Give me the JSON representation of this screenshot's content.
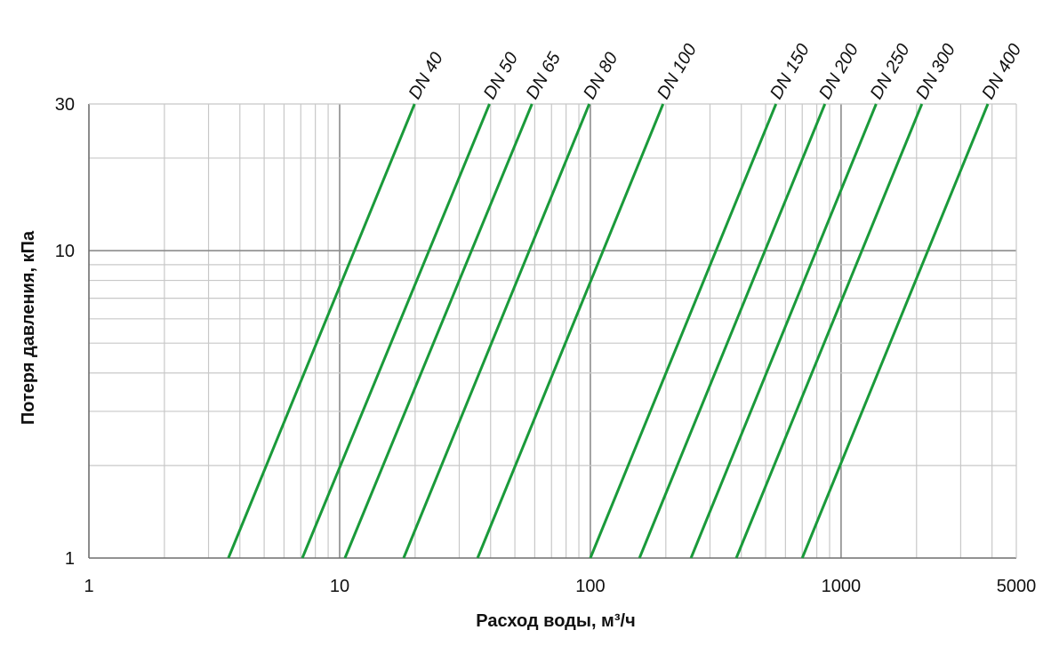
{
  "chart_data": {
    "type": "line",
    "title": "",
    "xlabel": "Расход воды, м³/ч",
    "ylabel": "Потеря давления, кПа",
    "x_scale": "log",
    "y_scale": "log",
    "xlim": [
      1,
      5000
    ],
    "ylim": [
      1,
      30
    ],
    "x_ticks": [
      1,
      10,
      100,
      1000,
      5000
    ],
    "x_tick_labels": [
      "1",
      "10",
      "100",
      "1000",
      "5000"
    ],
    "y_ticks": [
      1,
      10,
      30
    ],
    "y_tick_labels": [
      "1",
      "10",
      "30"
    ],
    "grid": true,
    "legend": "labels at top of each line",
    "colors": {
      "line": "#1a9a3a",
      "grid_minor": "#c8c8c8",
      "grid_major": "#8c8c8c",
      "axis": "#6e6e6e"
    },
    "series": [
      {
        "name": "DN 40",
        "x": [
          3.6,
          19.9
        ],
        "y": [
          1,
          30
        ]
      },
      {
        "name": "DN 50",
        "x": [
          7.1,
          39.6
        ],
        "y": [
          1,
          30
        ]
      },
      {
        "name": "DN 65",
        "x": [
          10.5,
          58.5
        ],
        "y": [
          1,
          30
        ]
      },
      {
        "name": "DN 80",
        "x": [
          18,
          99
        ],
        "y": [
          1,
          30
        ]
      },
      {
        "name": "DN 100",
        "x": [
          35.5,
          195
        ],
        "y": [
          1,
          30
        ]
      },
      {
        "name": "DN 150",
        "x": [
          100,
          550
        ],
        "y": [
          1,
          30
        ]
      },
      {
        "name": "DN 200",
        "x": [
          157,
          862
        ],
        "y": [
          1,
          30
        ]
      },
      {
        "name": "DN 250",
        "x": [
          252,
          1380
        ],
        "y": [
          1,
          30
        ]
      },
      {
        "name": "DN 300",
        "x": [
          382,
          2100
        ],
        "y": [
          1,
          30
        ]
      },
      {
        "name": "DN 400",
        "x": [
          700,
          3850
        ],
        "y": [
          1,
          30
        ]
      }
    ]
  }
}
